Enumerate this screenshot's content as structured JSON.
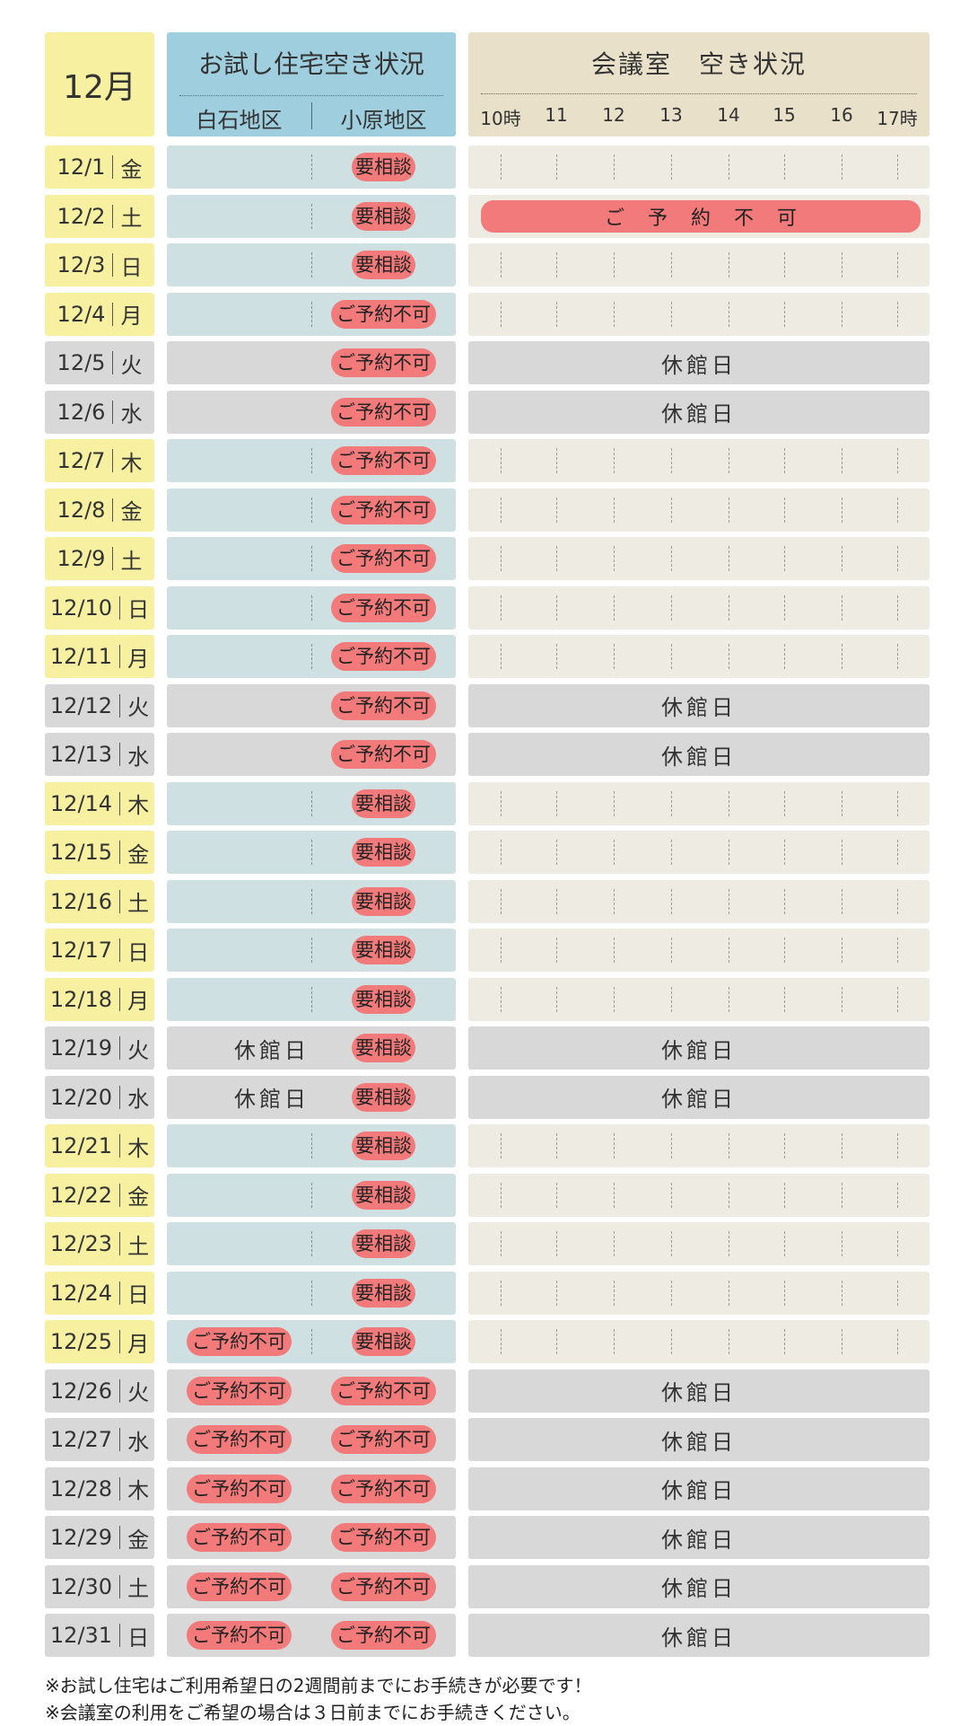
{
  "header": {
    "month": "12月",
    "house_title": "お試し住宅空き状況",
    "house_left": "白石地区",
    "house_right": "小原地区",
    "room_title": "会議室　空き状況",
    "hours": [
      "10時",
      "11",
      "12",
      "13",
      "14",
      "15",
      "16",
      "17時"
    ]
  },
  "labels": {
    "consult": "要相談",
    "unavailable": "ご予約不可",
    "closed": "休館日",
    "room_unavailable": "ご予約不可"
  },
  "rows": [
    {
      "date": "12/1",
      "dow": "金",
      "house_closed": false,
      "shiraishi": "",
      "ohara": "consult",
      "room": "open"
    },
    {
      "date": "12/2",
      "dow": "土",
      "house_closed": false,
      "shiraishi": "",
      "ohara": "consult",
      "room": "unavailable"
    },
    {
      "date": "12/3",
      "dow": "日",
      "house_closed": false,
      "shiraishi": "",
      "ohara": "consult",
      "room": "open"
    },
    {
      "date": "12/4",
      "dow": "月",
      "house_closed": false,
      "shiraishi": "",
      "ohara": "unavailable",
      "room": "open"
    },
    {
      "date": "12/5",
      "dow": "火",
      "house_closed": true,
      "shiraishi": "",
      "ohara": "unavailable",
      "room": "closed"
    },
    {
      "date": "12/6",
      "dow": "水",
      "house_closed": true,
      "shiraishi": "",
      "ohara": "unavailable",
      "room": "closed"
    },
    {
      "date": "12/7",
      "dow": "木",
      "house_closed": false,
      "shiraishi": "",
      "ohara": "unavailable",
      "room": "open"
    },
    {
      "date": "12/8",
      "dow": "金",
      "house_closed": false,
      "shiraishi": "",
      "ohara": "unavailable",
      "room": "open"
    },
    {
      "date": "12/9",
      "dow": "土",
      "house_closed": false,
      "shiraishi": "",
      "ohara": "unavailable",
      "room": "open"
    },
    {
      "date": "12/10",
      "dow": "日",
      "house_closed": false,
      "shiraishi": "",
      "ohara": "unavailable",
      "room": "open"
    },
    {
      "date": "12/11",
      "dow": "月",
      "house_closed": false,
      "shiraishi": "",
      "ohara": "unavailable",
      "room": "open"
    },
    {
      "date": "12/12",
      "dow": "火",
      "house_closed": true,
      "shiraishi": "",
      "ohara": "unavailable",
      "room": "closed"
    },
    {
      "date": "12/13",
      "dow": "水",
      "house_closed": true,
      "shiraishi": "",
      "ohara": "unavailable",
      "room": "closed"
    },
    {
      "date": "12/14",
      "dow": "木",
      "house_closed": false,
      "shiraishi": "",
      "ohara": "consult",
      "room": "open"
    },
    {
      "date": "12/15",
      "dow": "金",
      "house_closed": false,
      "shiraishi": "",
      "ohara": "consult",
      "room": "open"
    },
    {
      "date": "12/16",
      "dow": "土",
      "house_closed": false,
      "shiraishi": "",
      "ohara": "consult",
      "room": "open"
    },
    {
      "date": "12/17",
      "dow": "日",
      "house_closed": false,
      "shiraishi": "",
      "ohara": "consult",
      "room": "open"
    },
    {
      "date": "12/18",
      "dow": "月",
      "house_closed": false,
      "shiraishi": "",
      "ohara": "consult",
      "room": "open"
    },
    {
      "date": "12/19",
      "dow": "火",
      "house_closed": true,
      "shiraishi": "closed",
      "ohara": "consult",
      "room": "closed"
    },
    {
      "date": "12/20",
      "dow": "水",
      "house_closed": true,
      "shiraishi": "closed",
      "ohara": "consult",
      "room": "closed"
    },
    {
      "date": "12/21",
      "dow": "木",
      "house_closed": false,
      "shiraishi": "",
      "ohara": "consult",
      "room": "open"
    },
    {
      "date": "12/22",
      "dow": "金",
      "house_closed": false,
      "shiraishi": "",
      "ohara": "consult",
      "room": "open"
    },
    {
      "date": "12/23",
      "dow": "土",
      "house_closed": false,
      "shiraishi": "",
      "ohara": "consult",
      "room": "open"
    },
    {
      "date": "12/24",
      "dow": "日",
      "house_closed": false,
      "shiraishi": "",
      "ohara": "consult",
      "room": "open"
    },
    {
      "date": "12/25",
      "dow": "月",
      "house_closed": false,
      "shiraishi": "unavailable",
      "ohara": "consult",
      "room": "open"
    },
    {
      "date": "12/26",
      "dow": "火",
      "house_closed": true,
      "shiraishi": "unavailable",
      "ohara": "unavailable",
      "room": "closed"
    },
    {
      "date": "12/27",
      "dow": "水",
      "house_closed": true,
      "shiraishi": "unavailable",
      "ohara": "unavailable",
      "room": "closed"
    },
    {
      "date": "12/28",
      "dow": "木",
      "house_closed": true,
      "shiraishi": "unavailable",
      "ohara": "unavailable",
      "room": "closed"
    },
    {
      "date": "12/29",
      "dow": "金",
      "house_closed": true,
      "shiraishi": "unavailable",
      "ohara": "unavailable",
      "room": "closed"
    },
    {
      "date": "12/30",
      "dow": "土",
      "house_closed": true,
      "shiraishi": "unavailable",
      "ohara": "unavailable",
      "room": "closed"
    },
    {
      "date": "12/31",
      "dow": "日",
      "house_closed": true,
      "shiraishi": "unavailable",
      "ohara": "unavailable",
      "room": "closed"
    }
  ],
  "notes": [
    "※お試し住宅はご利用希望日の2週間前までにお手続きが必要です！",
    "※会議室の利用をご希望の場合は３日前までにお手続きください。"
  ],
  "colors": {
    "date_open": "#f7f0a0",
    "house_header": "#9fcfdf",
    "house_open": "#cfe0e3",
    "room_header": "#e8e0c9",
    "room_open": "#eeebe2",
    "closed_gray": "#d8d8d8",
    "unavailable_red": "#f27a7a"
  }
}
